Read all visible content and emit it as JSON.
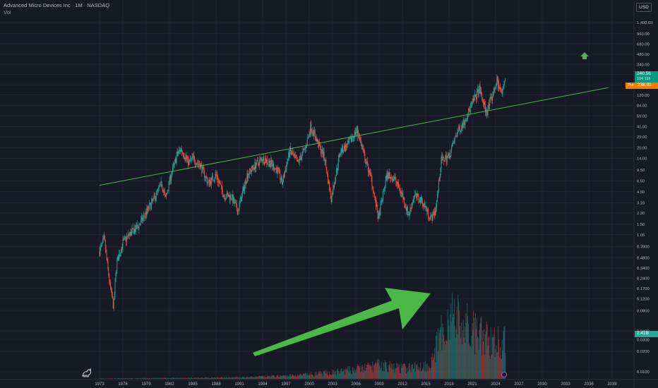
{
  "header": {
    "symbol_title": "Advanced Micro Devices Inc · 1M · NASDAQ",
    "volume_label": "Vol"
  },
  "toolbar": {
    "currency": "USD"
  },
  "price_tags": {
    "last_price": "240.56",
    "countdown": "104 11h",
    "pre_label": "Pre",
    "pre_price": "238.91",
    "volume_value": "2.41B"
  },
  "colors": {
    "background": "#161a25",
    "grid": "#1f2330",
    "up_candle": "#26a69a",
    "down_candle": "#ef5350",
    "trendline": "#4caf50",
    "annotation_arrow": "#4cb848",
    "axis_text": "#b2b5be"
  },
  "chart_data": {
    "type": "candlestick",
    "timeframe": "1M",
    "scale": "log",
    "grid": true,
    "ylim": [
      0.01,
      1400
    ],
    "x_ticks": [
      "1973",
      "1976",
      "1979",
      "1982",
      "1985",
      "1988",
      "1991",
      "1994",
      "1997",
      "2000",
      "2003",
      "2006",
      "2009",
      "2012",
      "2015",
      "2018",
      "2021",
      "2024",
      "2027",
      "2030",
      "2033",
      "2036",
      "2039"
    ],
    "x_tick_years": [
      1973,
      1976,
      1979,
      1982,
      1985,
      1988,
      1991,
      1994,
      1997,
      2000,
      2003,
      2006,
      2009,
      2012,
      2015,
      2018,
      2021,
      2024,
      2027,
      2030,
      2033,
      2036,
      2039
    ],
    "y_ticks": [
      "1,400.00",
      "960.00",
      "680.00",
      "480.00",
      "340.00",
      "240.00",
      "170.00",
      "120.00",
      "84.00",
      "59.00",
      "41.00",
      "29.00",
      "20.00",
      "14.00",
      "9.50",
      "6.50",
      "4.50",
      "3.10",
      "2.20",
      "1.50",
      "1.05",
      "0.7000",
      "0.4800",
      "0.3400",
      "0.2400",
      "0.1700",
      "0.1200",
      "0.0800",
      "0.0400",
      "0.0300",
      "0.0200",
      "0.0100"
    ],
    "y_tick_values": [
      1400,
      960,
      680,
      480,
      340,
      240,
      170,
      120,
      84,
      59,
      41,
      29,
      20,
      14,
      9.5,
      6.5,
      4.5,
      3.1,
      2.2,
      1.5,
      1.05,
      0.7,
      0.48,
      0.34,
      0.24,
      0.17,
      0.12,
      0.08,
      0.04,
      0.03,
      0.02,
      0.01
    ],
    "price_path": {
      "years": [
        1973.0,
        1973.6,
        1974.3,
        1974.8,
        1975.2,
        1976.0,
        1977.0,
        1978.0,
        1979.0,
        1980.0,
        1981.0,
        1981.5,
        1982.0,
        1983.0,
        1983.5,
        1984.5,
        1985.0,
        1986.0,
        1987.0,
        1988.0,
        1989.0,
        1990.0,
        1990.8,
        1992.0,
        1993.0,
        1994.0,
        1995.0,
        1996.0,
        1996.5,
        1997.5,
        1998.5,
        1999.5,
        2000.2,
        2001.0,
        2002.0,
        2002.8,
        2004.0,
        2005.0,
        2006.2,
        2007.0,
        2008.0,
        2008.9,
        2010.0,
        2011.0,
        2012.0,
        2012.8,
        2013.5,
        2014.5,
        2015.7,
        2016.3,
        2017.0,
        2018.0,
        2019.0,
        2020.0,
        2021.0,
        2021.9,
        2022.8,
        2023.5,
        2024.2,
        2024.8,
        2025.3
      ],
      "values": [
        0.6,
        0.9,
        0.2,
        0.09,
        0.4,
        0.8,
        1.1,
        1.4,
        2.2,
        3.5,
        6.0,
        3.5,
        6.5,
        16,
        19,
        12,
        14,
        11,
        6,
        8,
        4,
        3.8,
        2.3,
        8,
        11,
        14,
        12,
        9,
        6,
        18,
        12,
        20,
        42,
        25,
        14,
        3.5,
        18,
        22,
        38,
        16,
        7,
        1.8,
        8,
        7,
        4,
        2.0,
        4,
        3.3,
        1.8,
        2.5,
        13,
        15,
        33,
        50,
        90,
        150,
        65,
        110,
        200,
        120,
        240
      ],
      "peaks_marked": [
        {
          "year": 2000.2,
          "value": 48
        },
        {
          "year": 2006.2,
          "value": 42
        },
        {
          "year": 2024.3,
          "value": 227
        }
      ]
    },
    "volume_path": {
      "years": [
        1973,
        1980,
        1990,
        1998,
        2005,
        2009,
        2012,
        2015.5,
        2016.5,
        2018,
        2020,
        2022,
        2024,
        2025.3
      ],
      "values": [
        0.005,
        0.01,
        0.02,
        0.05,
        0.12,
        0.2,
        0.15,
        0.2,
        0.5,
        0.95,
        0.75,
        0.6,
        0.55,
        0.5
      ]
    },
    "trendline": {
      "start": {
        "year": 1973,
        "value": 5.6
      },
      "end": {
        "year": 2038.5,
        "value": 154
      }
    },
    "annotations": [
      {
        "type": "arrow",
        "shape": "wide",
        "direction": "up-right"
      },
      {
        "type": "arrow",
        "shape": "small",
        "direction": "up"
      }
    ]
  }
}
